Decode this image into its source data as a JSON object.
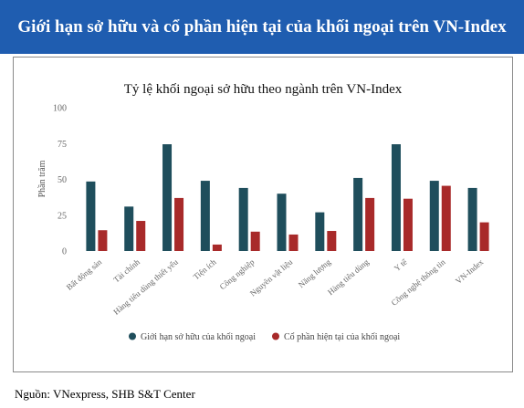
{
  "header": {
    "title": "Giới hạn sở hữu và cổ phần hiện tại của khối ngoại trên VN-Index"
  },
  "footer": {
    "source": "Nguồn: VNexpress, SHB S&T Center"
  },
  "colors": {
    "banner": "#1f5db0",
    "series1": "#1f4e5c",
    "series2": "#a82a2a"
  },
  "chart_data": {
    "type": "bar",
    "title": "Tỷ lệ khối ngoại sở hữu theo ngành trên VN-Index",
    "xlabel": "",
    "ylabel": "Phần trăm",
    "ylim": [
      0,
      100
    ],
    "yticks": [
      0,
      25,
      50,
      75,
      100
    ],
    "grid": false,
    "legend": "bottom",
    "categories": [
      "Bất động sản",
      "Tài chính",
      "Hàng tiêu dùng thiết yếu",
      "Tiện ích",
      "Công nghiệp",
      "Nguyên vật liệu",
      "Năng lượng",
      "Hàng tiêu dùng",
      "Y tế",
      "Công nghệ thông tin",
      "VN-Index"
    ],
    "series": [
      {
        "name": "Giới hạn sở hữu của khối ngoại",
        "values": [
          48.5,
          31,
          74.5,
          49,
          44,
          40,
          27,
          51,
          74.5,
          49,
          44
        ]
      },
      {
        "name": "Cổ phần hiện tại của khối ngoại",
        "values": [
          14.5,
          21,
          37,
          4.5,
          13.5,
          11.5,
          14,
          37,
          36.5,
          45.5,
          20
        ]
      }
    ]
  }
}
